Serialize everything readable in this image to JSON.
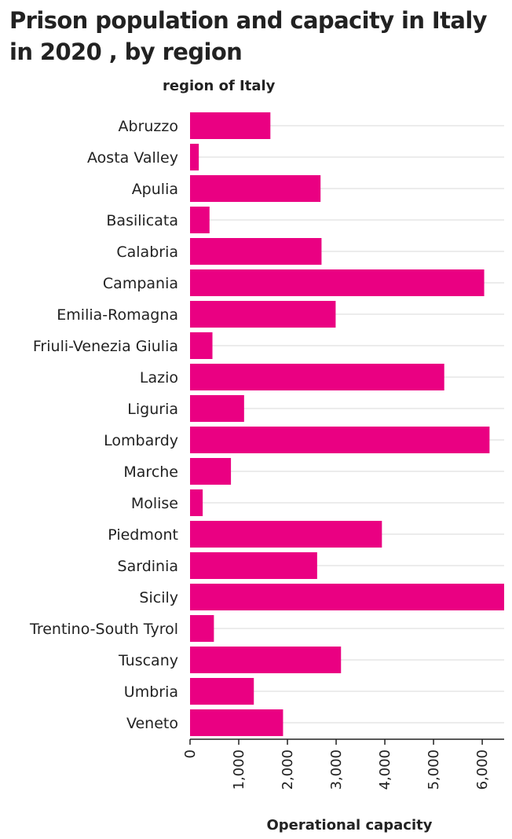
{
  "chart_data": {
    "type": "bar",
    "orientation": "horizontal",
    "title": "Prison population and capacity in Italy in 2020 , by region",
    "ylabel": "region of Italy",
    "xlabel": "Operational capacity",
    "categories": [
      "Abruzzo",
      "Aosta Valley",
      "Apulia",
      "Basilicata",
      "Calabria",
      "Campania",
      "Emilia-Romagna",
      "Friuli-Venezia Giulia",
      "Lazio",
      "Liguria",
      "Lombardy",
      "Marche",
      "Molise",
      "Piedmont",
      "Sardinia",
      "Sicily",
      "Trentino-South Tyrol",
      "Tuscany",
      "Umbria",
      "Veneto"
    ],
    "values": [
      1650,
      180,
      2680,
      400,
      2700,
      6040,
      2990,
      460,
      5220,
      1110,
      6150,
      840,
      260,
      3940,
      2610,
      6450,
      490,
      3100,
      1310,
      1910
    ],
    "xlim": [
      0,
      6450
    ],
    "xticks": [
      0,
      1000,
      2000,
      3000,
      4000,
      5000,
      6000
    ],
    "xtick_labels": [
      "0",
      "1,000",
      "2,000",
      "3,000",
      "4,000",
      "5,000",
      "6,000"
    ],
    "bar_color": "#ea0082",
    "grid": true,
    "legend": "none"
  }
}
